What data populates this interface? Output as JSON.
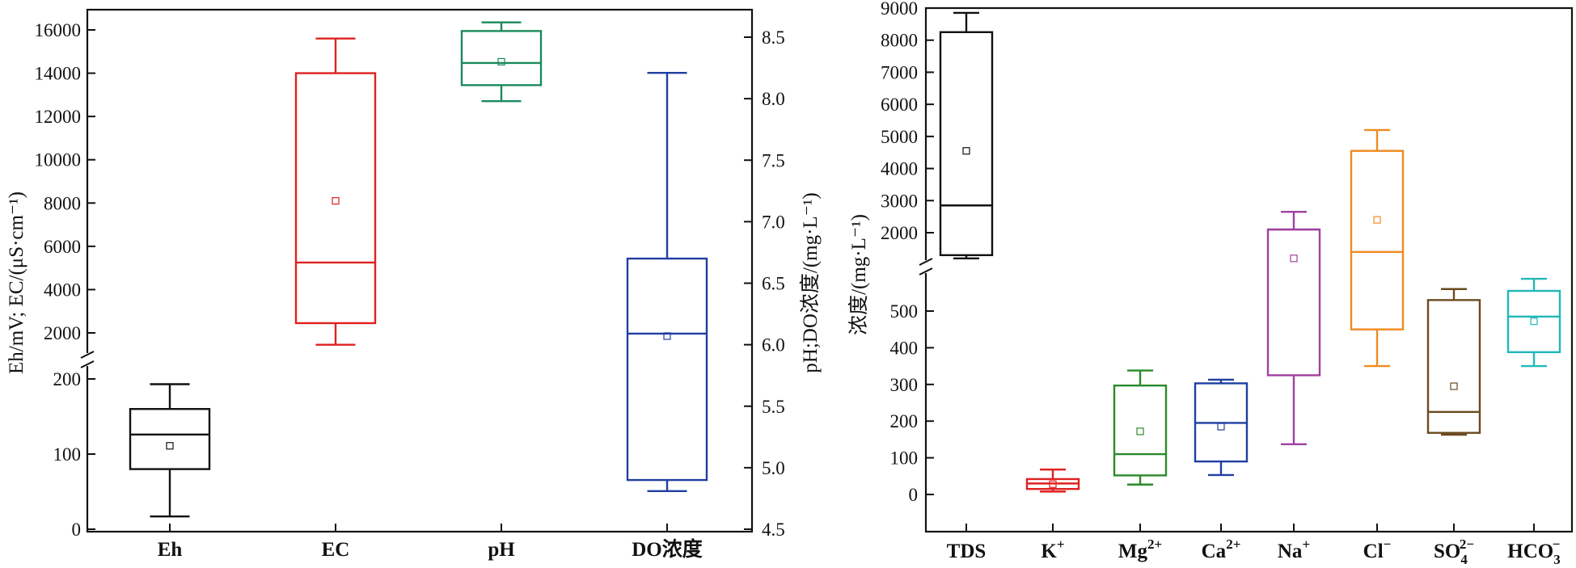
{
  "chart_data": [
    {
      "type": "box",
      "categories": [
        "Eh",
        "EC",
        "pH",
        "DO浓度"
      ],
      "left_axis": {
        "label": "Eh/mV; EC/(μS·cm⁻¹)",
        "broken": true,
        "lower_range": [
          0,
          200
        ],
        "upper_range": [
          1000,
          16500
        ],
        "lower_ticks": [
          "0",
          "100",
          "200"
        ],
        "upper_ticks": [
          "2000",
          "4000",
          "6000",
          "8000",
          "10000",
          "12000",
          "14000",
          "16000"
        ]
      },
      "right_axis": {
        "label": "pH;DO浓度/(mg·L⁻¹)",
        "range": [
          4.5,
          8.75
        ],
        "ticks": [
          "4.5",
          "5.0",
          "5.5",
          "6.0",
          "6.5",
          "7.0",
          "7.5",
          "8.0",
          "8.5"
        ]
      },
      "boxes": [
        {
          "name": "Eh",
          "axis": "left",
          "color": "#111111",
          "min": 17,
          "q1": 80,
          "median": 126,
          "q3": 160,
          "max": 193,
          "mean": 111
        },
        {
          "name": "EC",
          "axis": "left",
          "color": "#e02020",
          "min": 1450,
          "q1": 2450,
          "median": 5250,
          "q3": 14000,
          "max": 15600,
          "mean": 8100
        },
        {
          "name": "pH",
          "axis": "right",
          "color": "#1a8a5a",
          "min": 7.98,
          "q1": 8.11,
          "median": 8.29,
          "q3": 8.55,
          "max": 8.62,
          "mean": 8.3
        },
        {
          "name": "DO浓度",
          "axis": "right",
          "color": "#1f3f9f",
          "min": 4.81,
          "q1": 4.9,
          "median": 6.09,
          "q3": 6.7,
          "max": 8.21,
          "mean": 6.07
        }
      ]
    },
    {
      "type": "box",
      "categories": [
        "TDS",
        "K⁺",
        "Mg²⁺",
        "Ca²⁺",
        "Na⁺",
        "Cl⁻",
        "SO₄²⁻",
        "HCO₃⁻"
      ],
      "axis": {
        "label": "浓度/(mg·L⁻¹)",
        "broken": true,
        "lower_range": [
          -100,
          600
        ],
        "upper_range": [
          1100,
          9000
        ],
        "lower_ticks": [
          "0",
          "100",
          "200",
          "300",
          "400",
          "500"
        ],
        "upper_ticks": [
          "2000",
          "3000",
          "4000",
          "5000",
          "6000",
          "7000",
          "8000",
          "9000"
        ]
      },
      "boxes": [
        {
          "name": "TDS",
          "color": "#111111",
          "min": 1200,
          "q1": 1300,
          "median": 2850,
          "q3": 8250,
          "max": 8850,
          "mean": 4550
        },
        {
          "name": "K⁺",
          "color": "#e02020",
          "min": 8,
          "q1": 15,
          "median": 30,
          "q3": 42,
          "max": 68,
          "mean": 28
        },
        {
          "name": "Mg²⁺",
          "color": "#2a8a2a",
          "min": 27,
          "q1": 52,
          "median": 110,
          "q3": 297,
          "max": 338,
          "mean": 172
        },
        {
          "name": "Ca²⁺",
          "color": "#1f3f9f",
          "min": 53,
          "q1": 90,
          "median": 195,
          "q3": 303,
          "max": 313,
          "mean": 185
        },
        {
          "name": "Na⁺",
          "color": "#a040a0",
          "min": 137,
          "q1": 325,
          "median": 2100,
          "q3": 2100,
          "max": 2650,
          "mean": 1200
        },
        {
          "name": "Cl⁻",
          "color": "#f08a20",
          "min": 350,
          "q1": 450,
          "median": 1400,
          "q3": 4550,
          "max": 5200,
          "mean": 2400
        },
        {
          "name": "SO₄²⁻",
          "color": "#6b4a1f",
          "min": 163,
          "q1": 168,
          "median": 225,
          "q3": 530,
          "max": 560,
          "mean": 295
        },
        {
          "name": "HCO₃⁻",
          "color": "#20b8b8",
          "min": 350,
          "q1": 388,
          "median": 485,
          "q3": 555,
          "max": 588,
          "mean": 472
        }
      ]
    }
  ]
}
